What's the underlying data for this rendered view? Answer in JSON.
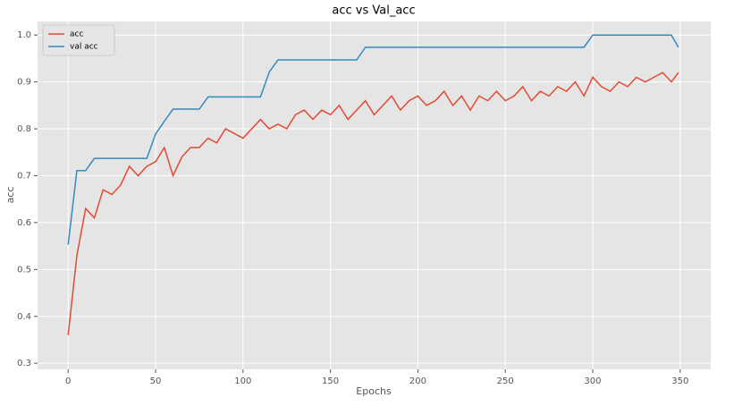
{
  "chart_data": {
    "type": "line",
    "title": "acc  vs Val_acc",
    "x_label": "Epochs",
    "y_label": "acc",
    "x": [
      0,
      5,
      10,
      15,
      20,
      25,
      30,
      35,
      40,
      45,
      50,
      55,
      60,
      65,
      70,
      75,
      80,
      85,
      90,
      95,
      100,
      105,
      110,
      115,
      120,
      125,
      130,
      135,
      140,
      145,
      150,
      155,
      160,
      165,
      170,
      175,
      180,
      185,
      190,
      195,
      200,
      205,
      210,
      215,
      220,
      225,
      230,
      235,
      240,
      245,
      250,
      255,
      260,
      265,
      270,
      275,
      280,
      285,
      290,
      295,
      300,
      305,
      310,
      315,
      320,
      325,
      330,
      335,
      340,
      345,
      349
    ],
    "series": [
      {
        "name": "acc",
        "color": "#E24A33",
        "values": [
          0.36,
          0.53,
          0.63,
          0.61,
          0.67,
          0.66,
          0.68,
          0.72,
          0.7,
          0.72,
          0.73,
          0.76,
          0.7,
          0.74,
          0.76,
          0.76,
          0.78,
          0.77,
          0.8,
          0.79,
          0.78,
          0.8,
          0.82,
          0.8,
          0.81,
          0.8,
          0.83,
          0.84,
          0.82,
          0.84,
          0.83,
          0.85,
          0.82,
          0.84,
          0.86,
          0.83,
          0.85,
          0.87,
          0.84,
          0.86,
          0.87,
          0.85,
          0.86,
          0.88,
          0.85,
          0.87,
          0.84,
          0.87,
          0.86,
          0.88,
          0.86,
          0.87,
          0.89,
          0.86,
          0.88,
          0.87,
          0.89,
          0.88,
          0.9,
          0.87,
          0.91,
          0.89,
          0.88,
          0.9,
          0.89,
          0.91,
          0.9,
          0.91,
          0.92,
          0.9,
          0.92
        ]
      },
      {
        "name": "val acc",
        "color": "#348ABD",
        "values": [
          0.553,
          0.711,
          0.711,
          0.737,
          0.737,
          0.737,
          0.737,
          0.737,
          0.737,
          0.737,
          0.789,
          0.816,
          0.842,
          0.842,
          0.842,
          0.842,
          0.868,
          0.868,
          0.868,
          0.868,
          0.868,
          0.868,
          0.868,
          0.921,
          0.947,
          0.947,
          0.947,
          0.947,
          0.947,
          0.947,
          0.947,
          0.947,
          0.947,
          0.947,
          0.974,
          0.974,
          0.974,
          0.974,
          0.974,
          0.974,
          0.974,
          0.974,
          0.974,
          0.974,
          0.974,
          0.974,
          0.974,
          0.974,
          0.974,
          0.974,
          0.974,
          0.974,
          0.974,
          0.974,
          0.974,
          0.974,
          0.974,
          0.974,
          0.974,
          0.974,
          1.0,
          1.0,
          1.0,
          1.0,
          1.0,
          1.0,
          1.0,
          1.0,
          1.0,
          1.0,
          0.974
        ]
      }
    ],
    "xlim": [
      -17.5,
      367.5
    ],
    "xticks": [
      0,
      50,
      100,
      150,
      200,
      250,
      300,
      350
    ],
    "ylim": [
      0.287,
      1.029
    ],
    "yticks": [
      0.3,
      0.4,
      0.5,
      0.6,
      0.7,
      0.8,
      0.9,
      {
        "value": 1,
        "label": "1.0"
      }
    ],
    "grid": true,
    "legend": "upper left"
  }
}
